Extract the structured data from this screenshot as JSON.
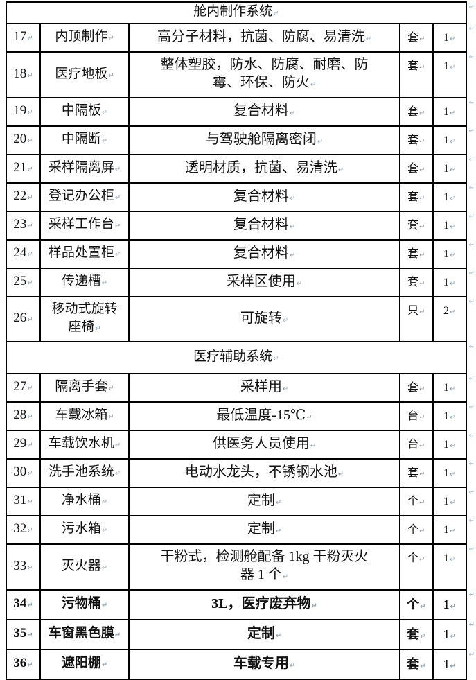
{
  "marks": {
    "cell": "↵",
    "row": "↵"
  },
  "colors": {
    "border": "#000000",
    "text": "#111111",
    "mark": "#8fa3b5"
  },
  "sections": [
    {
      "title": "舱内制作系统",
      "rows": [
        {
          "no": "17",
          "name": "内顶制作",
          "desc": "高分子材料，抗菌、防腐、易清洗",
          "unit": "套",
          "qty": "1"
        },
        {
          "no": "18",
          "name": "医疗地板",
          "desc": [
            "整体塑胶，防水、防腐、耐磨、防",
            "霉、环保、防火"
          ],
          "unit": "套",
          "qty": "1"
        },
        {
          "no": "19",
          "name": "中隔板",
          "desc": "复合材料",
          "unit": "套",
          "qty": "1"
        },
        {
          "no": "20",
          "name": "中隔断",
          "desc": "与驾驶舱隔离密闭",
          "unit": "套",
          "qty": "1"
        },
        {
          "no": "21",
          "name": "采样隔离屏",
          "desc": "透明材质，抗菌、易清洗",
          "unit": "套",
          "qty": "1"
        },
        {
          "no": "22",
          "name": "登记办公柜",
          "desc": "复合材料",
          "unit": "套",
          "qty": "1"
        },
        {
          "no": "23",
          "name": "采样工作台",
          "desc": "复合材料",
          "unit": "套",
          "qty": "1"
        },
        {
          "no": "24",
          "name": "样品处置柜",
          "desc": "复合材料",
          "unit": "套",
          "qty": "1"
        },
        {
          "no": "25",
          "name": "传递槽",
          "desc": "采样区使用",
          "unit": "套",
          "qty": "1"
        },
        {
          "no": "26",
          "name": [
            "移动式旋转",
            "座椅"
          ],
          "desc": "可旋转",
          "unit": "只",
          "qty": "2"
        }
      ]
    },
    {
      "title": "医疗辅助系统",
      "rows": [
        {
          "no": "27",
          "name": "隔离手套",
          "desc": "采样用",
          "unit": "套",
          "qty": "1"
        },
        {
          "no": "28",
          "name": "车载冰箱",
          "desc": "最低温度-15℃",
          "unit": "台",
          "qty": "1"
        },
        {
          "no": "29",
          "name": "车载饮水机",
          "desc": "供医务人员使用",
          "unit": "台",
          "qty": "1"
        },
        {
          "no": "30",
          "name": "洗手池系统",
          "desc": "电动水龙头，不锈钢水池",
          "unit": "套",
          "qty": "1"
        },
        {
          "no": "31",
          "name": "净水桶",
          "desc": "定制",
          "unit": "个",
          "qty": "1"
        },
        {
          "no": "32",
          "name": "污水箱",
          "desc": "定制",
          "unit": "个",
          "qty": "1"
        },
        {
          "no": "33",
          "name": "灭火器",
          "desc": [
            "干粉式，检测舱配备 1kg 干粉灭火",
            "器 1 个"
          ],
          "unit": "个",
          "qty": "1"
        },
        {
          "no": "34",
          "name": "污物桶",
          "desc": "3L，医疗废弃物",
          "unit": "个",
          "qty": "1",
          "bold": true
        },
        {
          "no": "35",
          "name": "车窗黑色膜",
          "desc": "定制",
          "unit": "套",
          "qty": "1",
          "bold": true
        },
        {
          "no": "36",
          "name": "遮阳棚",
          "desc": "车载专用",
          "unit": "套",
          "qty": "1",
          "bold": true
        }
      ]
    }
  ]
}
